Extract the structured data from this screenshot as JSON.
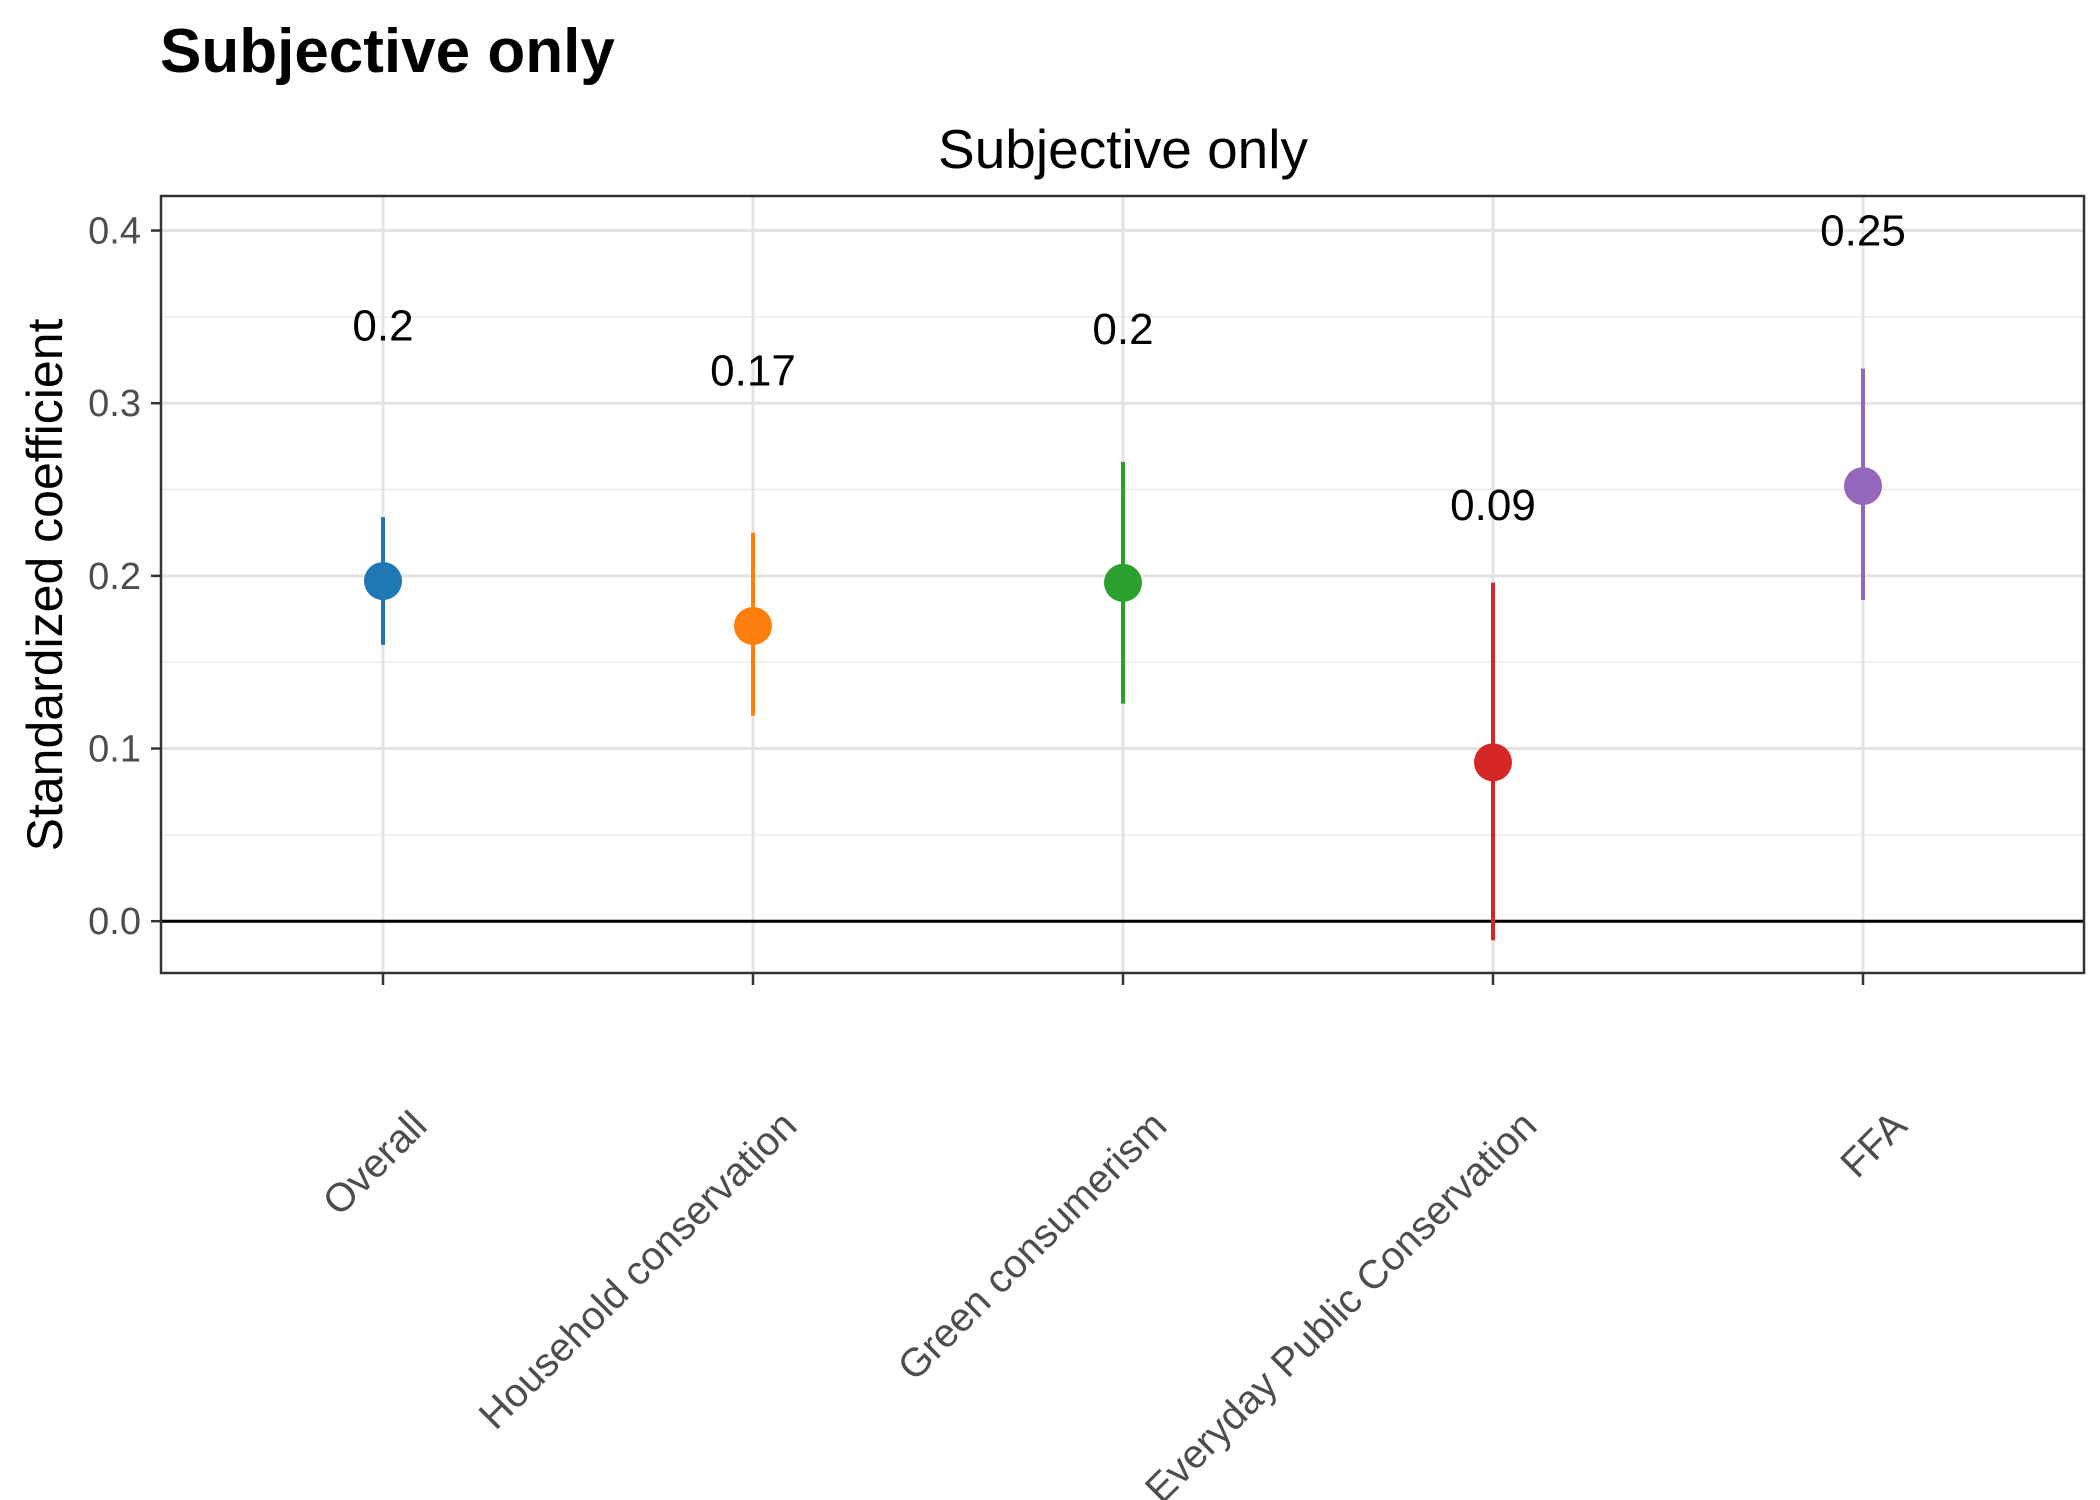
{
  "chart_data": {
    "type": "scatter",
    "title": "Subjective only",
    "subtitle": "Subjective only",
    "xlabel": "",
    "ylabel": "Standardized coefficient",
    "ylim": [
      -0.03,
      0.42
    ],
    "yticks": [
      0.0,
      0.1,
      0.2,
      0.3,
      0.4
    ],
    "ytick_labels": [
      "0.0",
      "0.1",
      "0.2",
      "0.3",
      "0.4"
    ],
    "grid": true,
    "reference_line": 0.0,
    "categories": [
      "Overall",
      "Household conservation",
      "Green consumerism",
      "Everyday Public Conservation",
      "FFA"
    ],
    "values": [
      0.197,
      0.171,
      0.196,
      0.092,
      0.252
    ],
    "ci_lower": [
      0.16,
      0.119,
      0.126,
      -0.011,
      0.186
    ],
    "ci_upper": [
      0.234,
      0.225,
      0.266,
      0.196,
      0.32
    ],
    "data_labels": [
      "0.2",
      "0.17",
      "0.2",
      "0.09",
      "0.25"
    ],
    "label_values": [
      0.345,
      0.319,
      0.343,
      0.241,
      0.4
    ],
    "colors": [
      "#1f77b4",
      "#ff7f0e",
      "#2ca02c",
      "#d62728",
      "#9467bd"
    ]
  }
}
